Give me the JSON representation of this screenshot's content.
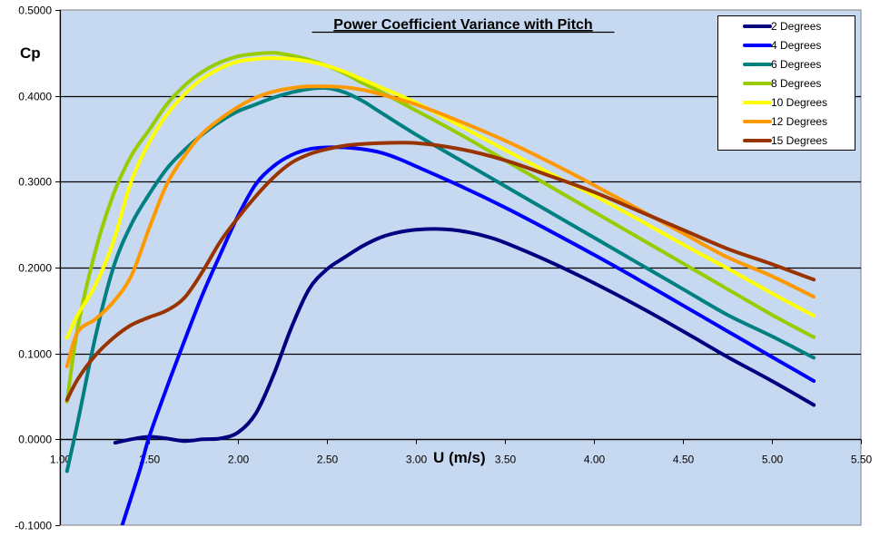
{
  "chart_data": {
    "type": "line",
    "title": "Power Coefficient Variance with Pitch",
    "xlabel": "U (m/s)",
    "ylabel": "Cp",
    "xlim": [
      1.0,
      5.5
    ],
    "ylim": [
      -0.1,
      0.5
    ],
    "x_ticks": [
      "1.00",
      "1.50",
      "2.00",
      "2.50",
      "3.00",
      "3.50",
      "4.00",
      "4.50",
      "5.00",
      "5.50"
    ],
    "x_tick_values": [
      1.0,
      1.5,
      2.0,
      2.5,
      3.0,
      3.5,
      4.0,
      4.5,
      5.0,
      5.5
    ],
    "y_ticks": [
      "-0.1000",
      "0.0000",
      "0.1000",
      "0.2000",
      "0.3000",
      "0.4000",
      "0.5000"
    ],
    "y_tick_values": [
      -0.1,
      0.0,
      0.1,
      0.2,
      0.3,
      0.4,
      0.5
    ],
    "grid": "horizontal major gridlines",
    "legend_position": "top-right",
    "plot_background": "#C6D9F1",
    "series": [
      {
        "name": "2 Degrees",
        "color": "#000080",
        "points": [
          [
            1.31,
            -0.004
          ],
          [
            1.4,
            0.0
          ],
          [
            1.5,
            0.003
          ],
          [
            1.6,
            0.001
          ],
          [
            1.7,
            -0.002
          ],
          [
            1.8,
            0.0
          ],
          [
            1.9,
            0.001
          ],
          [
            2.0,
            0.008
          ],
          [
            2.1,
            0.03
          ],
          [
            2.2,
            0.075
          ],
          [
            2.3,
            0.13
          ],
          [
            2.4,
            0.175
          ],
          [
            2.5,
            0.198
          ],
          [
            2.6,
            0.212
          ],
          [
            2.7,
            0.225
          ],
          [
            2.8,
            0.235
          ],
          [
            2.9,
            0.241
          ],
          [
            3.0,
            0.244
          ],
          [
            3.1,
            0.245
          ],
          [
            3.2,
            0.244
          ],
          [
            3.3,
            0.241
          ],
          [
            3.4,
            0.236
          ],
          [
            3.5,
            0.229
          ],
          [
            3.75,
            0.207
          ],
          [
            4.0,
            0.182
          ],
          [
            4.25,
            0.155
          ],
          [
            4.5,
            0.126
          ],
          [
            4.75,
            0.096
          ],
          [
            5.0,
            0.068
          ],
          [
            5.235,
            0.04
          ]
        ]
      },
      {
        "name": "4 Degrees",
        "color": "#0000FF",
        "points": [
          [
            1.35,
            -0.1
          ],
          [
            1.45,
            -0.035
          ],
          [
            1.5,
            0.002
          ],
          [
            1.6,
            0.06
          ],
          [
            1.7,
            0.115
          ],
          [
            1.8,
            0.168
          ],
          [
            1.9,
            0.215
          ],
          [
            2.0,
            0.26
          ],
          [
            2.1,
            0.297
          ],
          [
            2.2,
            0.318
          ],
          [
            2.3,
            0.331
          ],
          [
            2.4,
            0.338
          ],
          [
            2.5,
            0.34
          ],
          [
            2.6,
            0.34
          ],
          [
            2.7,
            0.338
          ],
          [
            2.8,
            0.334
          ],
          [
            2.9,
            0.327
          ],
          [
            3.0,
            0.318
          ],
          [
            3.25,
            0.295
          ],
          [
            3.5,
            0.27
          ],
          [
            3.75,
            0.243
          ],
          [
            4.0,
            0.215
          ],
          [
            4.25,
            0.186
          ],
          [
            4.5,
            0.156
          ],
          [
            4.75,
            0.126
          ],
          [
            5.0,
            0.096
          ],
          [
            5.235,
            0.068
          ]
        ]
      },
      {
        "name": "6 Degrees",
        "color": "#008080",
        "points": [
          [
            1.04,
            -0.037
          ],
          [
            1.1,
            0.02
          ],
          [
            1.2,
            0.12
          ],
          [
            1.3,
            0.2
          ],
          [
            1.4,
            0.25
          ],
          [
            1.5,
            0.285
          ],
          [
            1.6,
            0.315
          ],
          [
            1.7,
            0.337
          ],
          [
            1.8,
            0.355
          ],
          [
            1.9,
            0.37
          ],
          [
            2.0,
            0.382
          ],
          [
            2.1,
            0.39
          ],
          [
            2.2,
            0.398
          ],
          [
            2.3,
            0.404
          ],
          [
            2.4,
            0.408
          ],
          [
            2.5,
            0.409
          ],
          [
            2.6,
            0.404
          ],
          [
            2.7,
            0.394
          ],
          [
            2.8,
            0.381
          ],
          [
            3.0,
            0.355
          ],
          [
            3.25,
            0.325
          ],
          [
            3.5,
            0.295
          ],
          [
            3.75,
            0.265
          ],
          [
            4.0,
            0.235
          ],
          [
            4.25,
            0.205
          ],
          [
            4.5,
            0.175
          ],
          [
            4.75,
            0.145
          ],
          [
            5.0,
            0.12
          ],
          [
            5.235,
            0.095
          ]
        ]
      },
      {
        "name": "8 Degrees",
        "color": "#99CC00",
        "points": [
          [
            1.04,
            0.044
          ],
          [
            1.1,
            0.13
          ],
          [
            1.2,
            0.22
          ],
          [
            1.3,
            0.285
          ],
          [
            1.4,
            0.33
          ],
          [
            1.5,
            0.36
          ],
          [
            1.6,
            0.39
          ],
          [
            1.7,
            0.412
          ],
          [
            1.8,
            0.428
          ],
          [
            1.9,
            0.439
          ],
          [
            2.0,
            0.446
          ],
          [
            2.1,
            0.449
          ],
          [
            2.2,
            0.45
          ],
          [
            2.3,
            0.447
          ],
          [
            2.4,
            0.442
          ],
          [
            2.5,
            0.435
          ],
          [
            2.6,
            0.426
          ],
          [
            2.7,
            0.415
          ],
          [
            2.8,
            0.405
          ],
          [
            3.0,
            0.383
          ],
          [
            3.25,
            0.355
          ],
          [
            3.5,
            0.325
          ],
          [
            3.75,
            0.295
          ],
          [
            4.0,
            0.265
          ],
          [
            4.25,
            0.235
          ],
          [
            4.5,
            0.205
          ],
          [
            4.75,
            0.175
          ],
          [
            5.0,
            0.145
          ],
          [
            5.235,
            0.119
          ]
        ]
      },
      {
        "name": "10 Degrees",
        "color": "#FFFF00",
        "points": [
          [
            1.04,
            0.118
          ],
          [
            1.1,
            0.145
          ],
          [
            1.2,
            0.18
          ],
          [
            1.3,
            0.23
          ],
          [
            1.4,
            0.3
          ],
          [
            1.5,
            0.345
          ],
          [
            1.6,
            0.378
          ],
          [
            1.7,
            0.402
          ],
          [
            1.8,
            0.42
          ],
          [
            1.9,
            0.432
          ],
          [
            2.0,
            0.44
          ],
          [
            2.1,
            0.443
          ],
          [
            2.2,
            0.444
          ],
          [
            2.3,
            0.443
          ],
          [
            2.4,
            0.44
          ],
          [
            2.5,
            0.435
          ],
          [
            2.6,
            0.428
          ],
          [
            2.7,
            0.419
          ],
          [
            2.8,
            0.41
          ],
          [
            3.0,
            0.392
          ],
          [
            3.25,
            0.365
          ],
          [
            3.5,
            0.337
          ],
          [
            3.75,
            0.31
          ],
          [
            4.0,
            0.284
          ],
          [
            4.25,
            0.256
          ],
          [
            4.5,
            0.227
          ],
          [
            4.75,
            0.199
          ],
          [
            5.0,
            0.17
          ],
          [
            5.235,
            0.144
          ]
        ]
      },
      {
        "name": "12 Degrees",
        "color": "#FF9900",
        "points": [
          [
            1.04,
            0.085
          ],
          [
            1.1,
            0.125
          ],
          [
            1.2,
            0.14
          ],
          [
            1.3,
            0.16
          ],
          [
            1.4,
            0.19
          ],
          [
            1.5,
            0.245
          ],
          [
            1.6,
            0.297
          ],
          [
            1.7,
            0.33
          ],
          [
            1.8,
            0.356
          ],
          [
            1.9,
            0.373
          ],
          [
            2.0,
            0.387
          ],
          [
            2.1,
            0.398
          ],
          [
            2.2,
            0.405
          ],
          [
            2.3,
            0.409
          ],
          [
            2.4,
            0.411
          ],
          [
            2.5,
            0.411
          ],
          [
            2.6,
            0.41
          ],
          [
            2.7,
            0.407
          ],
          [
            2.8,
            0.402
          ],
          [
            3.0,
            0.39
          ],
          [
            3.25,
            0.37
          ],
          [
            3.5,
            0.348
          ],
          [
            3.75,
            0.323
          ],
          [
            4.0,
            0.296
          ],
          [
            4.25,
            0.268
          ],
          [
            4.5,
            0.24
          ],
          [
            4.75,
            0.212
          ],
          [
            5.0,
            0.19
          ],
          [
            5.235,
            0.166
          ]
        ]
      },
      {
        "name": "15 Degrees",
        "color": "#993300",
        "points": [
          [
            1.04,
            0.046
          ],
          [
            1.1,
            0.07
          ],
          [
            1.2,
            0.098
          ],
          [
            1.3,
            0.118
          ],
          [
            1.4,
            0.133
          ],
          [
            1.5,
            0.142
          ],
          [
            1.6,
            0.15
          ],
          [
            1.7,
            0.165
          ],
          [
            1.8,
            0.195
          ],
          [
            1.9,
            0.23
          ],
          [
            2.0,
            0.258
          ],
          [
            2.1,
            0.283
          ],
          [
            2.2,
            0.305
          ],
          [
            2.3,
            0.322
          ],
          [
            2.4,
            0.332
          ],
          [
            2.5,
            0.338
          ],
          [
            2.6,
            0.342
          ],
          [
            2.7,
            0.344
          ],
          [
            2.8,
            0.345
          ],
          [
            3.0,
            0.345
          ],
          [
            3.25,
            0.338
          ],
          [
            3.5,
            0.325
          ],
          [
            3.75,
            0.307
          ],
          [
            4.0,
            0.288
          ],
          [
            4.25,
            0.266
          ],
          [
            4.5,
            0.244
          ],
          [
            4.75,
            0.222
          ],
          [
            5.0,
            0.204
          ],
          [
            5.235,
            0.186
          ]
        ]
      }
    ]
  }
}
